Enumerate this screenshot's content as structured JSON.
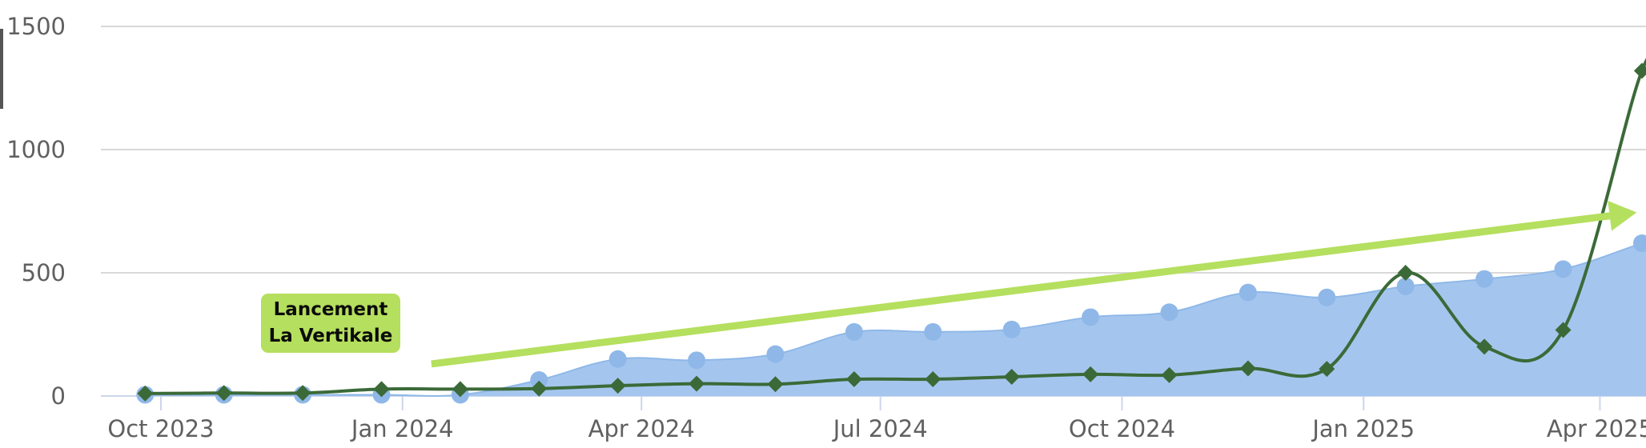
{
  "annotation": {
    "line1": "Lancement",
    "line2": "La Vertikale"
  },
  "colors": {
    "area_fill": "#a4c6ee",
    "area_marker": "#8fb8e8",
    "line": "#3b6a38",
    "arrow": "#b5df5e",
    "grid": "#d9d9d9"
  },
  "chart_data": {
    "type": "area",
    "x_axis": {
      "type": "datetime",
      "ticks": [
        "Oct 2023",
        "Jan 2024",
        "Apr 2024",
        "Jul 2024",
        "Oct 2024",
        "Jan 2025",
        "Apr 2025"
      ]
    },
    "y_axis": {
      "ticks": [
        0,
        500,
        1000,
        1500
      ],
      "ylim": [
        0,
        1500
      ]
    },
    "grid": "horizontal",
    "dates": [
      "2023-09-25",
      "2023-10-25",
      "2023-11-24",
      "2023-12-24",
      "2024-01-23",
      "2024-02-22",
      "2024-03-23",
      "2024-04-22",
      "2024-05-22",
      "2024-06-21",
      "2024-07-21",
      "2024-08-20",
      "2024-09-19",
      "2024-10-19",
      "2024-11-18",
      "2024-12-18",
      "2025-01-17",
      "2025-02-16",
      "2025-03-18",
      "2025-04-17"
    ],
    "series": [
      {
        "type": "area",
        "values": [
          5,
          5,
          5,
          5,
          5,
          65,
          150,
          145,
          170,
          260,
          260,
          270,
          320,
          340,
          420,
          400,
          445,
          475,
          515,
          620
        ]
      },
      {
        "type": "line",
        "marker": "diamond",
        "values": [
          10,
          12,
          12,
          28,
          28,
          30,
          42,
          50,
          48,
          68,
          68,
          78,
          88,
          85,
          112,
          110,
          500,
          200,
          268,
          1320
        ]
      }
    ],
    "annotation": {
      "text": "Lancement La Vertikale",
      "arrow_from": {
        "date": "2024-01-12",
        "value": 130
      },
      "arrow_to": {
        "date": "2025-04-15",
        "value": 745
      }
    }
  }
}
